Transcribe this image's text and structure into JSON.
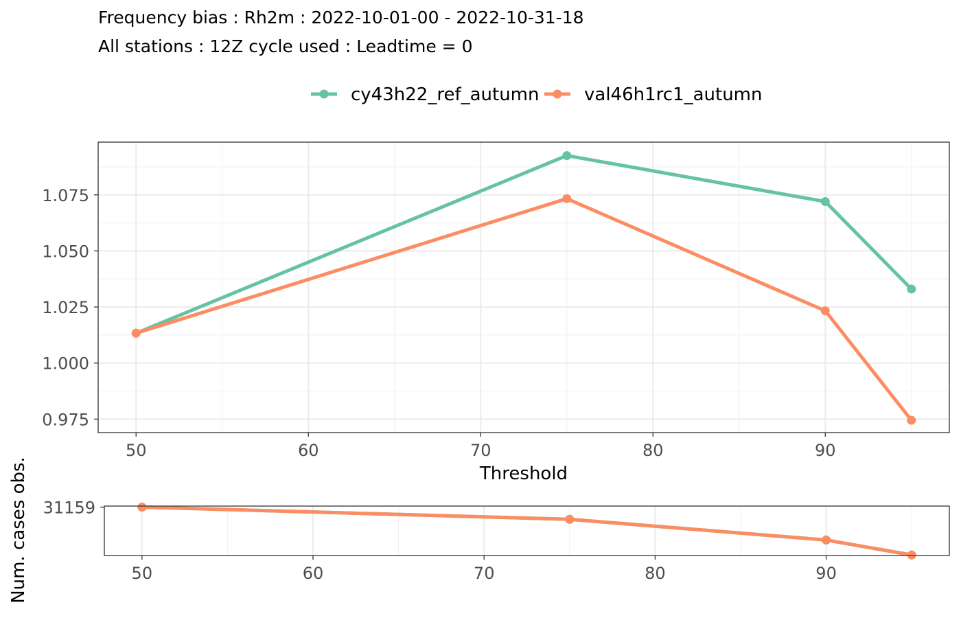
{
  "title": {
    "line1": "Frequency bias : Rh2m : 2022-10-01-00 - 2022-10-31-18",
    "line2": "All stations : 12Z cycle used : Leadtime = 0"
  },
  "chart_data": [
    {
      "type": "line",
      "x": [
        50,
        75,
        90,
        95
      ],
      "series": [
        {
          "name": "cy43h22_ref_autumn",
          "color": "#66c2a5",
          "values": [
            1.0133,
            1.0925,
            1.072,
            1.033
          ]
        },
        {
          "name": "val46h1rc1_autumn",
          "color": "#fc8d62",
          "values": [
            1.0133,
            1.0733,
            1.0233,
            0.9745
          ]
        }
      ],
      "xlabel": "Threshold",
      "ylabel": "",
      "xlim": [
        47.8,
        97.2
      ],
      "ylim": [
        0.969,
        1.0985
      ],
      "xticks": [
        50,
        60,
        70,
        80,
        90
      ],
      "yticks": [
        0.975,
        1.0,
        1.025,
        1.05,
        1.075
      ],
      "ytick_labels": [
        "0.975",
        "1.000",
        "1.025",
        "1.050",
        "1.075"
      ],
      "grid": true,
      "legend": "top"
    },
    {
      "type": "line",
      "x": [
        50,
        75,
        90,
        95
      ],
      "series": [
        {
          "name": "cy43h22_ref_autumn",
          "color": "#66c2a5",
          "values": [
            31159,
            30460,
            29270,
            28410
          ]
        },
        {
          "name": "val46h1rc1_autumn",
          "color": "#fc8d62",
          "values": [
            31159,
            30460,
            29270,
            28410
          ]
        }
      ],
      "xlabel": "",
      "ylabel": "Num. cases obs.",
      "xlim": [
        47.8,
        97.2
      ],
      "ylim": [
        28380,
        31220
      ],
      "xticks": [
        50,
        60,
        70,
        80,
        90
      ],
      "yticks": [
        31159
      ],
      "ytick_labels": [
        "31159"
      ],
      "grid": true
    }
  ]
}
